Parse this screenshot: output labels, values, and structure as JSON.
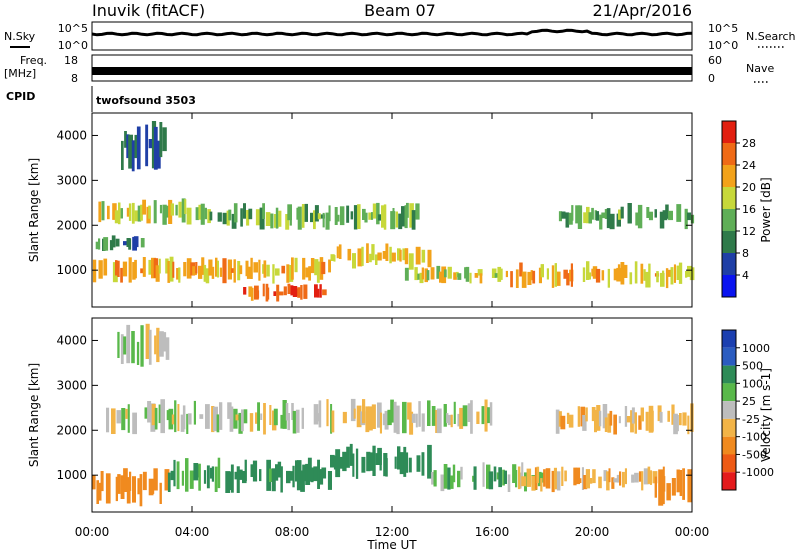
{
  "header": {
    "station": "Inuvik (fitACF)",
    "beam": "Beam 07",
    "date": "21/Apr/2016"
  },
  "top_panels": {
    "nsky_label": "N.Sky",
    "nsky_ticks": [
      "10^5",
      "10^0"
    ],
    "nsearch_label": "N.Search",
    "nsearch_ticks": [
      "10^5",
      "10^0"
    ],
    "freq_label": "Freq.",
    "freq_unit": "[MHz]",
    "freq_ticks": [
      "18",
      "8"
    ],
    "nave_label": "Nave",
    "nave_ticks": [
      "60",
      "0"
    ],
    "cpid_label": "CPID",
    "cpid_value": "twofsound 3503"
  },
  "x_axis": {
    "title": "Time UT",
    "ticks": [
      "00:00",
      "04:00",
      "08:00",
      "12:00",
      "16:00",
      "20:00",
      "00:00"
    ]
  },
  "colors": {
    "power": [
      "#0a14f0",
      "#1f3fa6",
      "#2f7a4a",
      "#5fae57",
      "#c7d83a",
      "#f2a21a",
      "#ef6a16",
      "#e21f10"
    ],
    "velocity": [
      "#e41a1c",
      "#ee5a15",
      "#f08a1f",
      "#f2b447",
      "#bdbdbd",
      "#59b84a",
      "#2e8b57",
      "#2b5cc0",
      "#1b3fb0"
    ]
  },
  "chart_data": [
    {
      "type": "heatmap",
      "name": "power",
      "ylabel": "Slant Range [km]",
      "xlabel": "",
      "xlim": [
        0,
        24
      ],
      "ylim": [
        180,
        4500
      ],
      "yticks": [
        "1000",
        "2000",
        "3000",
        "4000"
      ],
      "colorbar": {
        "label": "Power [dB]",
        "ticks": [
          "4",
          "8",
          "12",
          "16",
          "20",
          "24",
          "28"
        ],
        "range": [
          0,
          32
        ]
      },
      "bands": [
        {
          "t0": 0.0,
          "t1": 9.5,
          "r0": 700,
          "r1": 1300,
          "value": 22
        },
        {
          "t0": 6.0,
          "t1": 9.3,
          "r0": 300,
          "r1": 700,
          "value": 27
        },
        {
          "t0": 9.5,
          "t1": 13.5,
          "r0": 1000,
          "r1": 1600,
          "value": 20
        },
        {
          "t0": 12.5,
          "t1": 16.5,
          "r0": 700,
          "r1": 1100,
          "value": 18
        },
        {
          "t0": 16.5,
          "t1": 24.0,
          "r0": 600,
          "r1": 1200,
          "value": 21
        },
        {
          "t0": 0.0,
          "t1": 4.0,
          "r0": 2000,
          "r1": 2600,
          "value": 18
        },
        {
          "t0": 4.0,
          "t1": 13.0,
          "r0": 1900,
          "r1": 2500,
          "value": 14
        },
        {
          "t0": 18.5,
          "t1": 24.0,
          "r0": 1900,
          "r1": 2500,
          "value": 13
        },
        {
          "t0": 0.0,
          "t1": 2.0,
          "r0": 1400,
          "r1": 1800,
          "value": 10
        },
        {
          "t0": 1.0,
          "t1": 3.0,
          "r0": 3200,
          "r1": 4400,
          "value": 8
        }
      ]
    },
    {
      "type": "heatmap",
      "name": "velocity",
      "ylabel": "Slant Range [km]",
      "xlabel": "Time UT",
      "xlim": [
        0,
        24
      ],
      "ylim": [
        180,
        4500
      ],
      "yticks": [
        "1000",
        "2000",
        "3000",
        "4000"
      ],
      "colorbar": {
        "label": "Velocity [m s-1]",
        "ticks": [
          "1000",
          "500",
          "100",
          "25",
          "-25",
          "-100",
          "-500",
          "-1000"
        ],
        "range": [
          -1000,
          1000
        ]
      },
      "bands": [
        {
          "t0": 0.0,
          "t1": 3.0,
          "r0": 300,
          "r1": 1200,
          "value": -300
        },
        {
          "t0": 3.0,
          "t1": 9.5,
          "r0": 600,
          "r1": 1400,
          "value": 150
        },
        {
          "t0": 9.5,
          "t1": 13.5,
          "r0": 900,
          "r1": 1700,
          "value": 300
        },
        {
          "t0": 13.5,
          "t1": 18.0,
          "r0": 600,
          "r1": 1300,
          "value": 80
        },
        {
          "t0": 17.0,
          "t1": 22.5,
          "r0": 600,
          "r1": 1200,
          "value": -80
        },
        {
          "t0": 22.5,
          "t1": 24.0,
          "r0": 300,
          "r1": 1200,
          "value": -300
        },
        {
          "t0": 0.5,
          "t1": 16.0,
          "r0": 1900,
          "r1": 2700,
          "value": 5
        },
        {
          "t0": 18.5,
          "t1": 24.0,
          "r0": 1900,
          "r1": 2600,
          "value": -40
        },
        {
          "t0": 1.0,
          "t1": 3.0,
          "r0": 3400,
          "r1": 4400,
          "value": 10
        }
      ]
    }
  ]
}
